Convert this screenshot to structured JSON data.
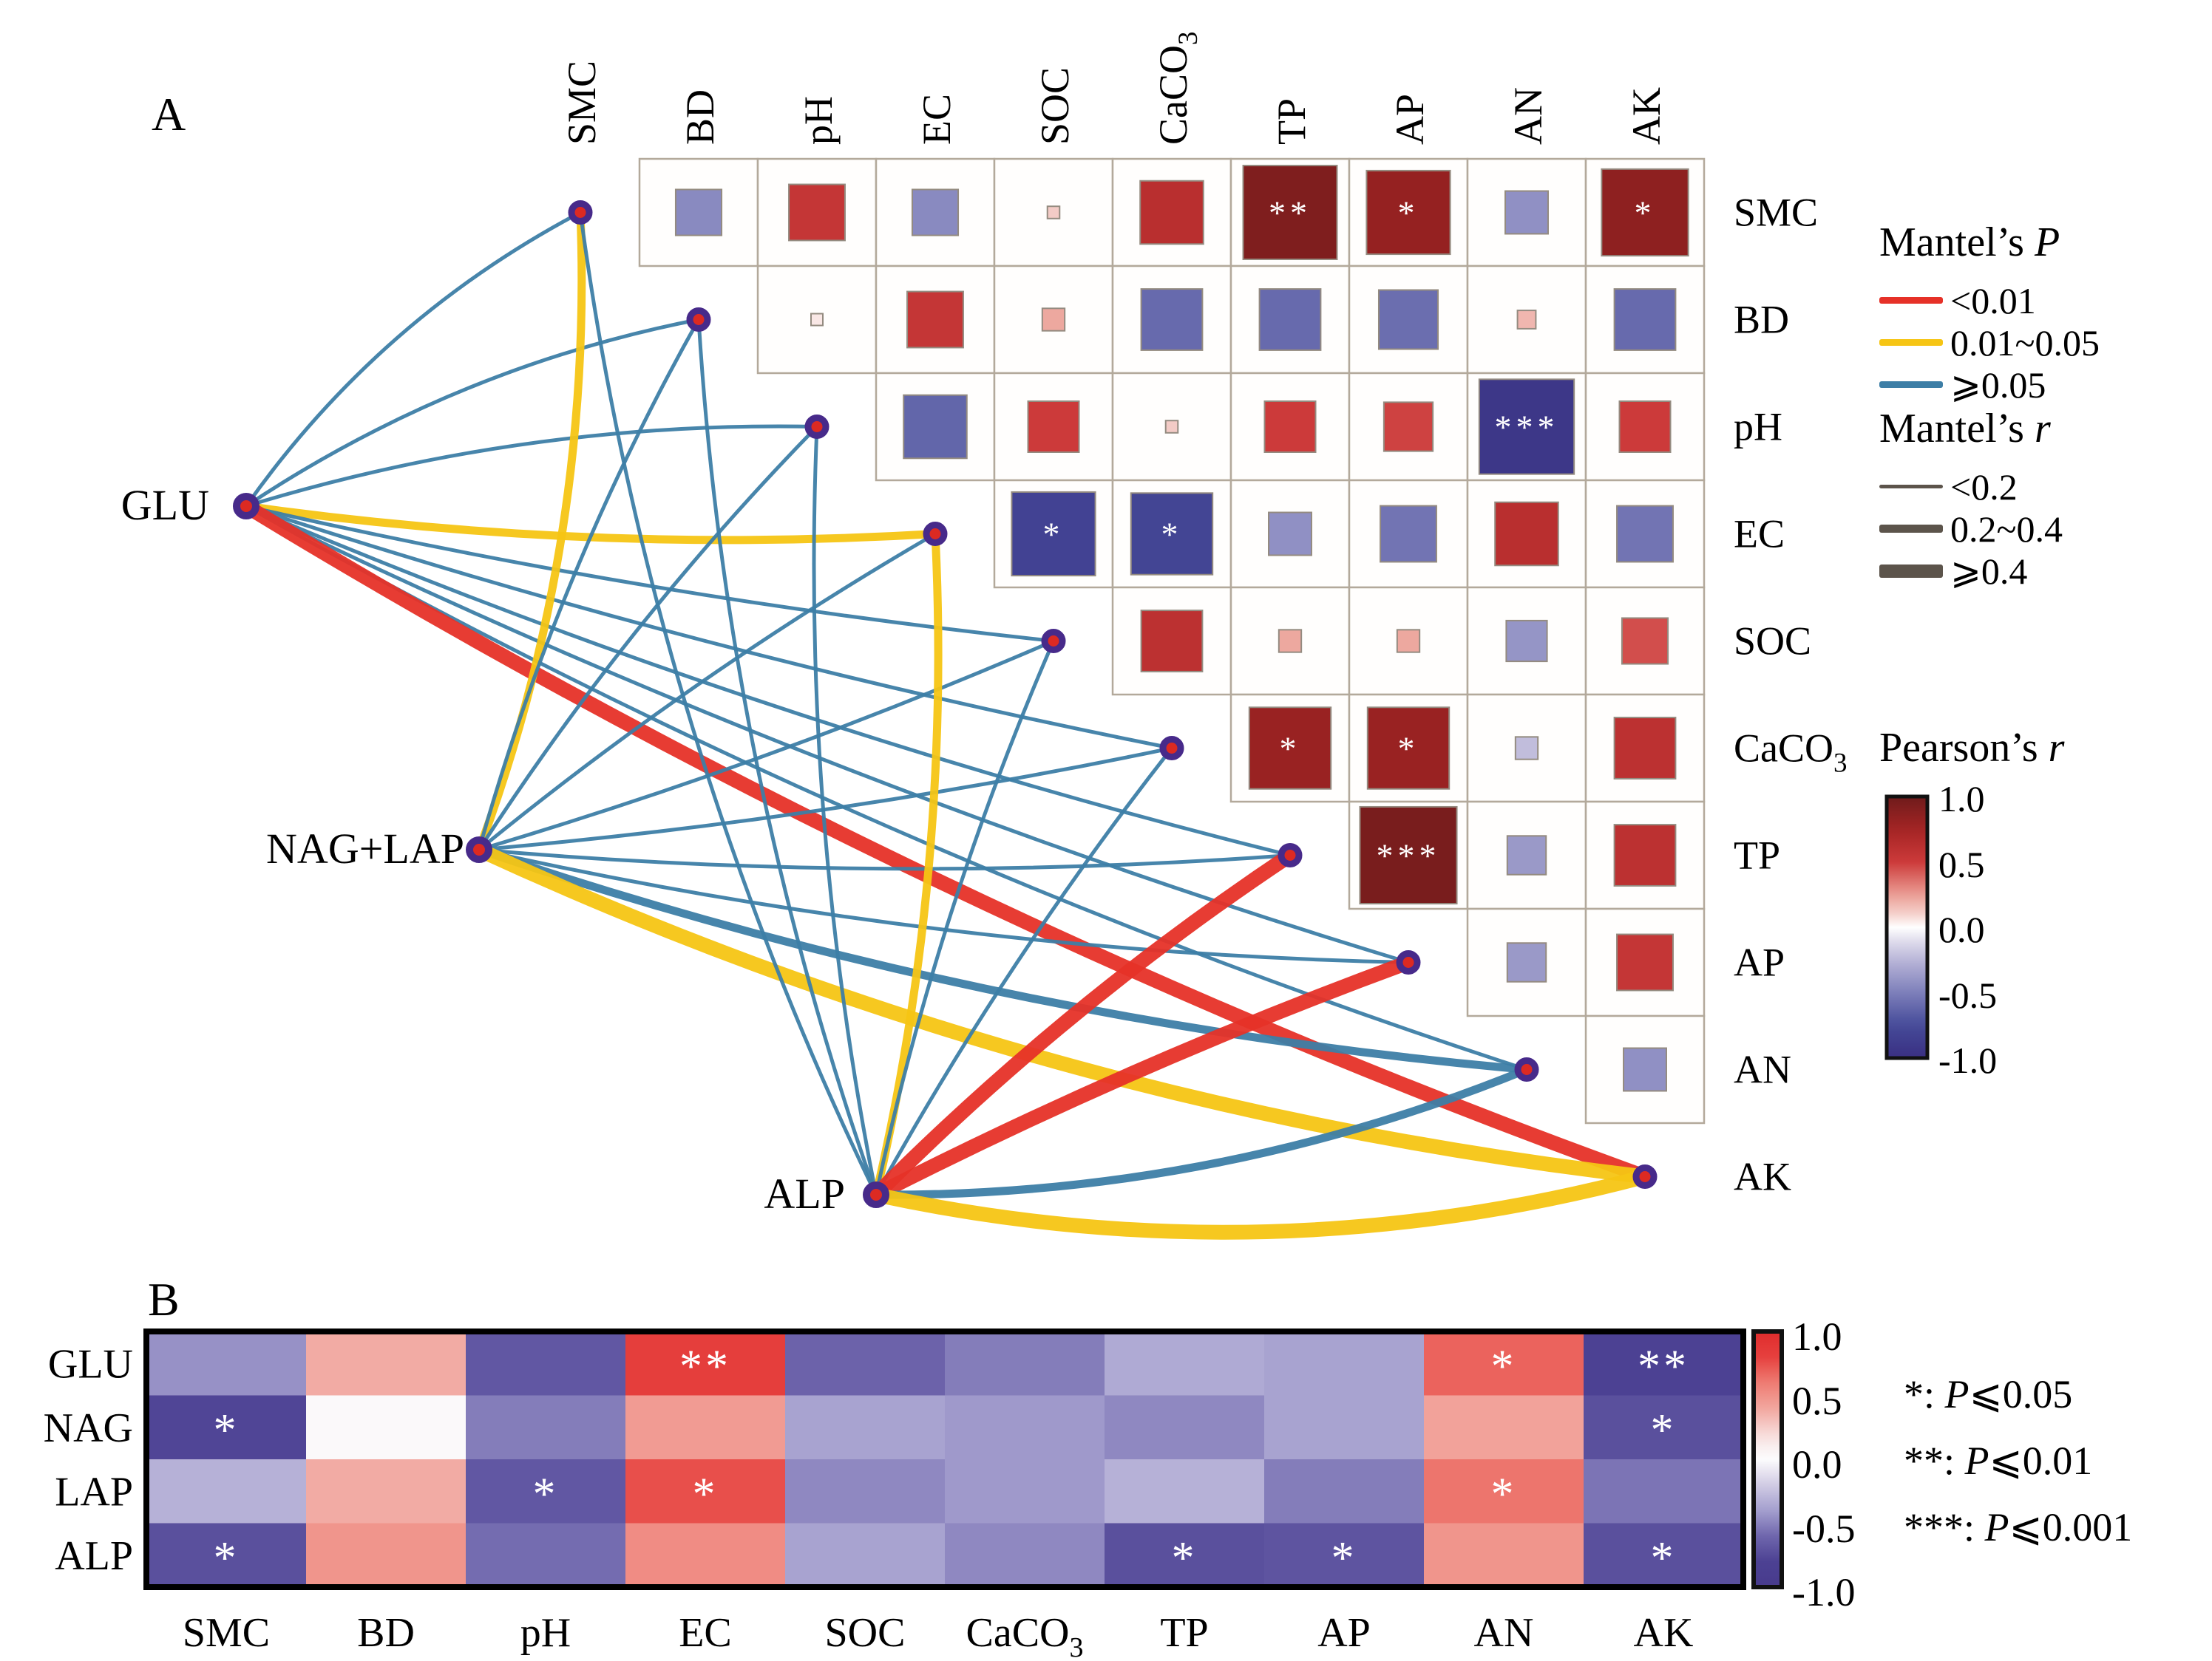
{
  "panel_a_letter": "A",
  "panel_b_letter": "B",
  "chart_data": [
    {
      "type": "mantel_correlation_network",
      "panel": "A",
      "variables": [
        "SMC",
        "BD",
        "pH",
        "EC",
        "SOC",
        "CaCO3",
        "TP",
        "AP",
        "AN",
        "AK"
      ],
      "enzyme_nodes": [
        "GLU",
        "NAG+LAP",
        "ALP"
      ],
      "pearson_matrix": [
        {
          "row": "SMC",
          "col": "BD",
          "r": -0.45,
          "sig": ""
        },
        {
          "row": "SMC",
          "col": "pH",
          "r": 0.55,
          "sig": ""
        },
        {
          "row": "SMC",
          "col": "EC",
          "r": -0.45,
          "sig": ""
        },
        {
          "row": "SMC",
          "col": "SOC",
          "r": 0.12,
          "sig": ""
        },
        {
          "row": "SMC",
          "col": "CaCO3",
          "r": 0.62,
          "sig": ""
        },
        {
          "row": "SMC",
          "col": "TP",
          "r": 0.92,
          "sig": "**"
        },
        {
          "row": "SMC",
          "col": "AP",
          "r": 0.82,
          "sig": "*"
        },
        {
          "row": "SMC",
          "col": "AN",
          "r": -0.42,
          "sig": ""
        },
        {
          "row": "SMC",
          "col": "AK",
          "r": 0.85,
          "sig": "*"
        },
        {
          "row": "BD",
          "col": "pH",
          "r": 0.05,
          "sig": ""
        },
        {
          "row": "BD",
          "col": "EC",
          "r": 0.55,
          "sig": ""
        },
        {
          "row": "BD",
          "col": "SOC",
          "r": 0.22,
          "sig": ""
        },
        {
          "row": "BD",
          "col": "CaCO3",
          "r": -0.6,
          "sig": ""
        },
        {
          "row": "BD",
          "col": "TP",
          "r": -0.6,
          "sig": ""
        },
        {
          "row": "BD",
          "col": "AP",
          "r": -0.58,
          "sig": ""
        },
        {
          "row": "BD",
          "col": "AN",
          "r": 0.18,
          "sig": ""
        },
        {
          "row": "BD",
          "col": "AK",
          "r": -0.6,
          "sig": ""
        },
        {
          "row": "pH",
          "col": "EC",
          "r": -0.62,
          "sig": ""
        },
        {
          "row": "pH",
          "col": "SOC",
          "r": 0.5,
          "sig": ""
        },
        {
          "row": "pH",
          "col": "CaCO3",
          "r": 0.12,
          "sig": ""
        },
        {
          "row": "pH",
          "col": "TP",
          "r": 0.5,
          "sig": ""
        },
        {
          "row": "pH",
          "col": "AP",
          "r": 0.48,
          "sig": ""
        },
        {
          "row": "pH",
          "col": "AN",
          "r": -0.93,
          "sig": "***"
        },
        {
          "row": "pH",
          "col": "AK",
          "r": 0.5,
          "sig": ""
        },
        {
          "row": "EC",
          "col": "SOC",
          "r": -0.82,
          "sig": "*"
        },
        {
          "row": "EC",
          "col": "CaCO3",
          "r": -0.8,
          "sig": "*"
        },
        {
          "row": "EC",
          "col": "TP",
          "r": -0.42,
          "sig": ""
        },
        {
          "row": "EC",
          "col": "AP",
          "r": -0.55,
          "sig": ""
        },
        {
          "row": "EC",
          "col": "AN",
          "r": 0.62,
          "sig": ""
        },
        {
          "row": "EC",
          "col": "AK",
          "r": -0.55,
          "sig": ""
        },
        {
          "row": "SOC",
          "col": "CaCO3",
          "r": 0.6,
          "sig": ""
        },
        {
          "row": "SOC",
          "col": "TP",
          "r": 0.22,
          "sig": ""
        },
        {
          "row": "SOC",
          "col": "AP",
          "r": 0.22,
          "sig": ""
        },
        {
          "row": "SOC",
          "col": "AN",
          "r": -0.4,
          "sig": ""
        },
        {
          "row": "SOC",
          "col": "AK",
          "r": 0.45,
          "sig": ""
        },
        {
          "row": "CaCO3",
          "col": "TP",
          "r": 0.8,
          "sig": "*"
        },
        {
          "row": "CaCO3",
          "col": "AP",
          "r": 0.8,
          "sig": "*"
        },
        {
          "row": "CaCO3",
          "col": "AN",
          "r": -0.22,
          "sig": ""
        },
        {
          "row": "CaCO3",
          "col": "AK",
          "r": 0.6,
          "sig": ""
        },
        {
          "row": "TP",
          "col": "AP",
          "r": 0.95,
          "sig": "***"
        },
        {
          "row": "TP",
          "col": "AN",
          "r": -0.38,
          "sig": ""
        },
        {
          "row": "TP",
          "col": "AK",
          "r": 0.6,
          "sig": ""
        },
        {
          "row": "AP",
          "col": "AN",
          "r": -0.38,
          "sig": ""
        },
        {
          "row": "AP",
          "col": "AK",
          "r": 0.55,
          "sig": ""
        },
        {
          "row": "AN",
          "col": "AK",
          "r": -0.42,
          "sig": ""
        }
      ],
      "mantel_edges": [
        {
          "from": "GLU",
          "to": "SMC",
          "p": "⩾0.05",
          "r": "<0.2"
        },
        {
          "from": "GLU",
          "to": "BD",
          "p": "⩾0.05",
          "r": "<0.2"
        },
        {
          "from": "GLU",
          "to": "pH",
          "p": "⩾0.05",
          "r": "<0.2"
        },
        {
          "from": "GLU",
          "to": "EC",
          "p": "0.01~0.05",
          "r": "0.2~0.4"
        },
        {
          "from": "GLU",
          "to": "SOC",
          "p": "⩾0.05",
          "r": "<0.2"
        },
        {
          "from": "GLU",
          "to": "CaCO3",
          "p": "⩾0.05",
          "r": "<0.2"
        },
        {
          "from": "GLU",
          "to": "TP",
          "p": "⩾0.05",
          "r": "<0.2"
        },
        {
          "from": "GLU",
          "to": "AP",
          "p": "⩾0.05",
          "r": "<0.2"
        },
        {
          "from": "GLU",
          "to": "AN",
          "p": "⩾0.05",
          "r": "<0.2"
        },
        {
          "from": "GLU",
          "to": "AK",
          "p": "<0.01",
          "r": "⩾0.4"
        },
        {
          "from": "NAG+LAP",
          "to": "SMC",
          "p": "0.01~0.05",
          "r": "0.2~0.4"
        },
        {
          "from": "NAG+LAP",
          "to": "BD",
          "p": "⩾0.05",
          "r": "<0.2"
        },
        {
          "from": "NAG+LAP",
          "to": "pH",
          "p": "⩾0.05",
          "r": "<0.2"
        },
        {
          "from": "NAG+LAP",
          "to": "EC",
          "p": "⩾0.05",
          "r": "<0.2"
        },
        {
          "from": "NAG+LAP",
          "to": "SOC",
          "p": "⩾0.05",
          "r": "<0.2"
        },
        {
          "from": "NAG+LAP",
          "to": "CaCO3",
          "p": "⩾0.05",
          "r": "<0.2"
        },
        {
          "from": "NAG+LAP",
          "to": "TP",
          "p": "⩾0.05",
          "r": "<0.2"
        },
        {
          "from": "NAG+LAP",
          "to": "AP",
          "p": "⩾0.05",
          "r": "<0.2"
        },
        {
          "from": "NAG+LAP",
          "to": "AN",
          "p": "⩾0.05",
          "r": "0.2~0.4"
        },
        {
          "from": "NAG+LAP",
          "to": "AK",
          "p": "0.01~0.05",
          "r": "⩾0.4"
        },
        {
          "from": "ALP",
          "to": "SMC",
          "p": "⩾0.05",
          "r": "<0.2"
        },
        {
          "from": "ALP",
          "to": "BD",
          "p": "⩾0.05",
          "r": "<0.2"
        },
        {
          "from": "ALP",
          "to": "pH",
          "p": "⩾0.05",
          "r": "<0.2"
        },
        {
          "from": "ALP",
          "to": "EC",
          "p": "0.01~0.05",
          "r": "0.2~0.4"
        },
        {
          "from": "ALP",
          "to": "SOC",
          "p": "⩾0.05",
          "r": "<0.2"
        },
        {
          "from": "ALP",
          "to": "CaCO3",
          "p": "⩾0.05",
          "r": "<0.2"
        },
        {
          "from": "ALP",
          "to": "TP",
          "p": "<0.01",
          "r": "⩾0.4"
        },
        {
          "from": "ALP",
          "to": "AP",
          "p": "<0.01",
          "r": "⩾0.4"
        },
        {
          "from": "ALP",
          "to": "AN",
          "p": "⩾0.05",
          "r": "0.2~0.4"
        },
        {
          "from": "ALP",
          "to": "AK",
          "p": "0.01~0.05",
          "r": "⩾0.4"
        }
      ],
      "legend": {
        "mantel_p_title_prefix": "Mantel’s",
        "mantel_p_title_symbol": "P",
        "mantel_p_items": [
          {
            "label": "<0.01",
            "color": "#e63128"
          },
          {
            "label": "0.01~0.05",
            "color": "#f6c514"
          },
          {
            "label": "⩾0.05",
            "color": "#3d7ea6"
          }
        ],
        "mantel_r_title_prefix": "Mantel’s",
        "mantel_r_title_symbol": "r",
        "mantel_r_items": [
          {
            "label": "<0.2",
            "thickness": 5
          },
          {
            "label": "0.2~0.4",
            "thickness": 11
          },
          {
            "label": "⩾0.4",
            "thickness": 18
          }
        ],
        "pearson_title_prefix": "Pearson’s",
        "pearson_title_symbol": "r",
        "pearson_ticks": [
          "1.0",
          "0.5",
          "0.0",
          "-0.5",
          "-1.0"
        ],
        "pearson_range": [
          1.0,
          -1.0
        ]
      }
    },
    {
      "type": "heatmap",
      "panel": "B",
      "rows": [
        "GLU",
        "NAG",
        "LAP",
        "ALP"
      ],
      "categories": [
        "SMC",
        "BD",
        "pH",
        "EC",
        "SOC",
        "CaCO3",
        "TP",
        "AP",
        "AN",
        "AK"
      ],
      "series": [
        {
          "name": "GLU",
          "values": [
            -0.45,
            0.38,
            -0.68,
            0.82,
            -0.62,
            -0.52,
            -0.35,
            -0.38,
            0.68,
            -0.8
          ],
          "sig": [
            "",
            "",
            "",
            "**",
            "",
            "",
            "",
            "",
            "*",
            "**"
          ]
        },
        {
          "name": "NAG",
          "values": [
            -0.78,
            0.02,
            -0.52,
            0.45,
            -0.38,
            -0.42,
            -0.48,
            -0.38,
            0.42,
            -0.72
          ],
          "sig": [
            "*",
            "",
            "",
            "",
            "",
            "",
            "",
            "",
            "",
            "*"
          ]
        },
        {
          "name": "LAP",
          "values": [
            -0.32,
            0.38,
            -0.68,
            0.75,
            -0.48,
            -0.42,
            -0.32,
            -0.52,
            0.62,
            -0.55
          ],
          "sig": [
            "",
            "",
            "*",
            "*",
            "",
            "",
            "",
            "",
            "*",
            ""
          ]
        },
        {
          "name": "ALP",
          "values": [
            -0.72,
            0.48,
            -0.58,
            0.52,
            -0.38,
            -0.48,
            -0.72,
            -0.7,
            0.48,
            -0.72
          ],
          "sig": [
            "*",
            "",
            "",
            "",
            "",
            "",
            "*",
            "*",
            "",
            "*"
          ]
        }
      ],
      "colorbar_ticks": [
        "1.0",
        "0.5",
        "0.0",
        "-0.5",
        "-1.0"
      ],
      "colorbar_range": [
        1.0,
        -1.0
      ],
      "sig_legend": [
        {
          "stars": "*",
          "p_symbol": "P",
          "relation": "⩽0.05"
        },
        {
          "stars": "**",
          "p_symbol": "P",
          "relation": "⩽0.01"
        },
        {
          "stars": "***",
          "p_symbol": "P",
          "relation": "⩽0.001"
        }
      ]
    }
  ]
}
